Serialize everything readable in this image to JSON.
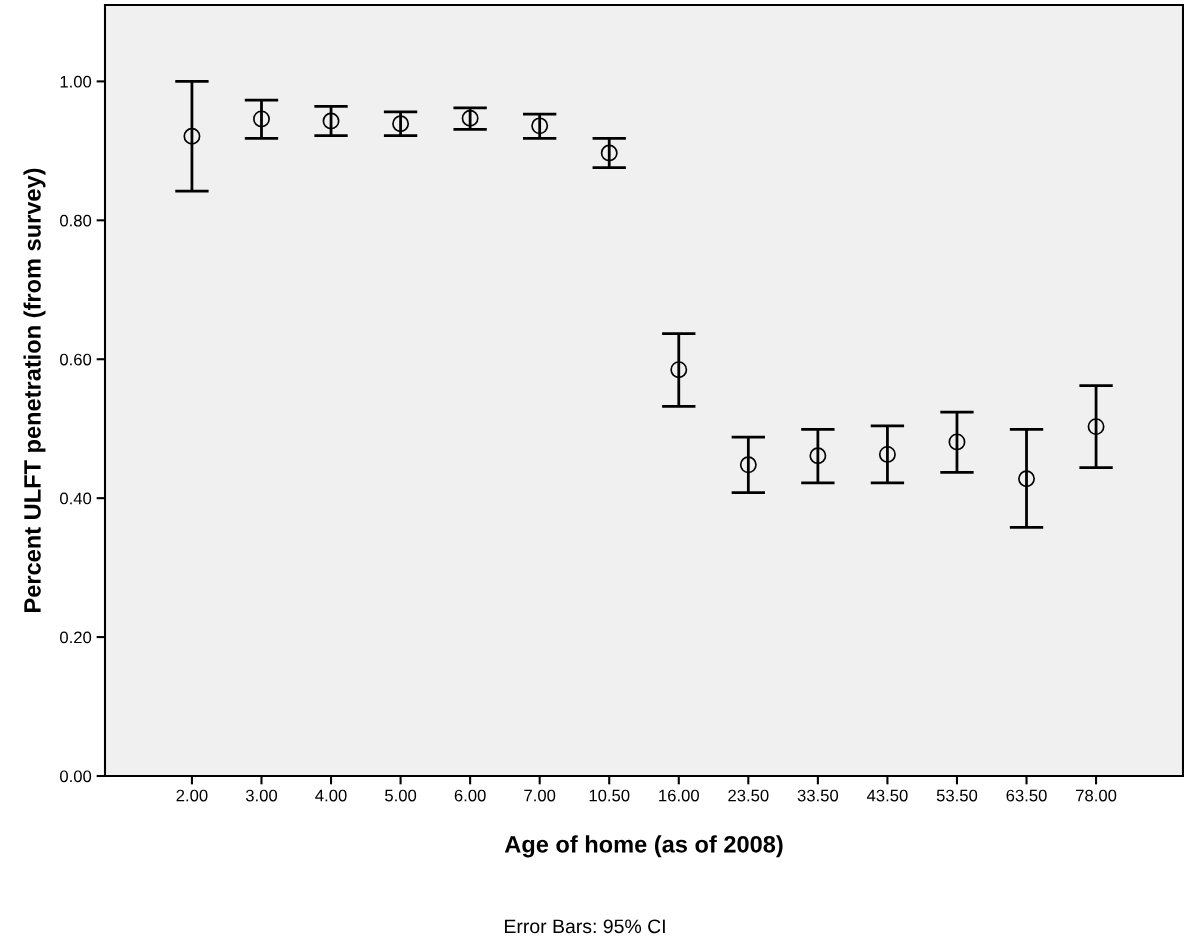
{
  "chart_data": {
    "type": "scatter",
    "categories": [
      "2.00",
      "3.00",
      "4.00",
      "5.00",
      "6.00",
      "7.00",
      "10.50",
      "16.00",
      "23.50",
      "33.50",
      "43.50",
      "53.50",
      "63.50",
      "78.00"
    ],
    "values": [
      0.921,
      0.946,
      0.943,
      0.939,
      0.947,
      0.936,
      0.897,
      0.585,
      0.448,
      0.461,
      0.463,
      0.481,
      0.428,
      0.503
    ],
    "errors": [
      [
        0.842,
        1.0
      ],
      [
        0.918,
        0.973
      ],
      [
        0.922,
        0.964
      ],
      [
        0.922,
        0.956
      ],
      [
        0.931,
        0.962
      ],
      [
        0.918,
        0.953
      ],
      [
        0.876,
        0.918
      ],
      [
        0.532,
        0.637
      ],
      [
        0.408,
        0.488
      ],
      [
        0.422,
        0.499
      ],
      [
        0.422,
        0.504
      ],
      [
        0.437,
        0.524
      ],
      [
        0.358,
        0.499
      ],
      [
        0.444,
        0.562
      ]
    ],
    "color": "#000000",
    "marker": "circle",
    "xlabel": "Age of home (as of 2008)",
    "ylabel": "Percent ULFT penetration (from survey)",
    "ylim": [
      0,
      1.11
    ],
    "yticks": [
      {
        "value": 0,
        "label": "0.00"
      },
      {
        "value": 0.2,
        "label": "0.20"
      },
      {
        "value": 0.4,
        "label": "0.40"
      },
      {
        "value": 0.6,
        "label": "0.60"
      },
      {
        "value": 0.8,
        "label": "0.80"
      },
      {
        "value": 1.0,
        "label": "1.00"
      }
    ],
    "grid": false,
    "annotations": [
      "Error Bars: 95% CI"
    ]
  }
}
